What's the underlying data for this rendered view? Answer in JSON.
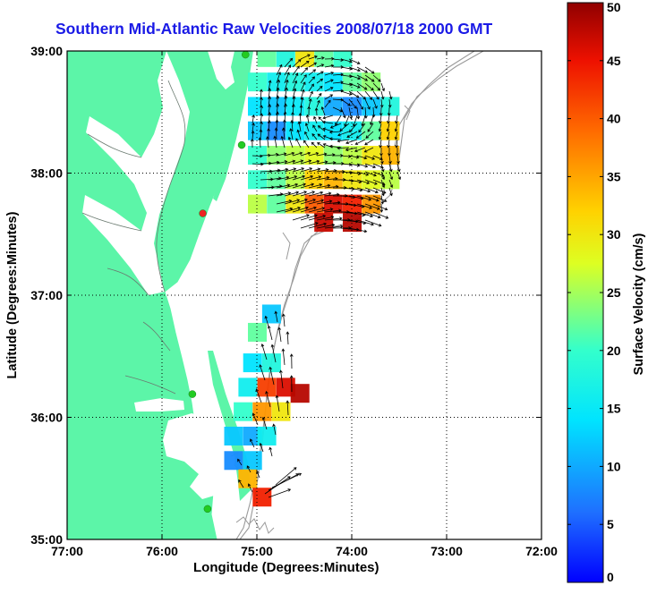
{
  "chart_data": {
    "type": "heatmap",
    "title": "Southern Mid-Atlantic Raw Velocities 2008/07/18 2000 GMT",
    "xlabel": "Longitude (Degrees:Minutes)",
    "ylabel": "Latitude (Degrees:Minutes)",
    "colorbar_label": "Surface Velocity (cm/s)",
    "x_ticks": [
      "77:00",
      "76:00",
      "75:00",
      "74:00",
      "73:00",
      "72:00"
    ],
    "y_ticks": [
      "39:00",
      "38:00",
      "37:00",
      "36:00",
      "35:00"
    ],
    "colorbar_ticks": [
      "0",
      "5",
      "10",
      "15",
      "20",
      "25",
      "30",
      "35",
      "40",
      "45",
      "50"
    ],
    "xlim": [
      -77,
      -72
    ],
    "ylim": [
      35,
      39
    ],
    "clim": [
      0,
      50
    ],
    "grid": true,
    "colormap": "jet",
    "land_color": "#5cf5a8",
    "stations": [
      {
        "lon": -75.12,
        "lat": 38.97,
        "color": "#22cc22"
      },
      {
        "lon": -75.16,
        "lat": 38.23,
        "color": "#22cc22"
      },
      {
        "lon": -75.57,
        "lat": 37.67,
        "color": "#ee2222"
      },
      {
        "lon": -75.68,
        "lat": 36.19,
        "color": "#22cc22"
      },
      {
        "lon": -75.52,
        "lat": 35.25,
        "color": "#22cc22"
      }
    ],
    "regions": [
      {
        "name": "north",
        "cells": [
          [
            -74.9,
            38.95,
            22
          ],
          [
            -74.7,
            38.95,
            18
          ],
          [
            -74.5,
            38.95,
            30
          ],
          [
            -74.3,
            38.95,
            22
          ],
          [
            -74.1,
            38.95,
            20
          ],
          [
            -75.0,
            38.75,
            20
          ],
          [
            -74.8,
            38.75,
            16
          ],
          [
            -74.6,
            38.75,
            18
          ],
          [
            -74.4,
            38.75,
            16
          ],
          [
            -74.2,
            38.75,
            14
          ],
          [
            -74.0,
            38.75,
            22
          ],
          [
            -73.8,
            38.75,
            24
          ],
          [
            -75.0,
            38.55,
            14
          ],
          [
            -74.8,
            38.55,
            12
          ],
          [
            -74.6,
            38.55,
            15
          ],
          [
            -74.4,
            38.55,
            18
          ],
          [
            -74.2,
            38.55,
            10
          ],
          [
            -74.0,
            38.55,
            8
          ],
          [
            -73.8,
            38.55,
            12
          ],
          [
            -73.6,
            38.55,
            18
          ],
          [
            -75.0,
            38.35,
            12
          ],
          [
            -74.8,
            38.35,
            8
          ],
          [
            -74.6,
            38.35,
            14
          ],
          [
            -74.4,
            38.35,
            16
          ],
          [
            -74.2,
            38.35,
            14
          ],
          [
            -74.0,
            38.35,
            16
          ],
          [
            -73.8,
            38.35,
            22
          ],
          [
            -73.6,
            38.35,
            32
          ],
          [
            -75.0,
            38.15,
            20
          ],
          [
            -74.8,
            38.15,
            24
          ],
          [
            -74.6,
            38.15,
            26
          ],
          [
            -74.4,
            38.15,
            28
          ],
          [
            -74.2,
            38.15,
            24
          ],
          [
            -74.0,
            38.15,
            26
          ],
          [
            -73.8,
            38.15,
            30
          ],
          [
            -73.6,
            38.15,
            34
          ],
          [
            -75.0,
            37.95,
            20
          ],
          [
            -74.8,
            37.95,
            22
          ],
          [
            -74.6,
            37.95,
            26
          ],
          [
            -74.4,
            37.95,
            32
          ],
          [
            -74.2,
            37.95,
            34
          ],
          [
            -74.0,
            37.95,
            30
          ],
          [
            -73.8,
            37.95,
            28
          ],
          [
            -73.6,
            37.95,
            26
          ],
          [
            -75.0,
            37.75,
            26
          ],
          [
            -74.8,
            37.75,
            22
          ],
          [
            -74.6,
            37.75,
            30
          ],
          [
            -74.4,
            37.75,
            40
          ],
          [
            -74.2,
            37.75,
            46
          ],
          [
            -74.0,
            37.75,
            44
          ],
          [
            -73.8,
            37.75,
            36
          ],
          [
            -74.3,
            37.6,
            47
          ],
          [
            -74.0,
            37.6,
            48
          ]
        ]
      },
      {
        "name": "south",
        "cells": [
          [
            -74.85,
            36.85,
            12
          ],
          [
            -75.0,
            36.7,
            22
          ],
          [
            -75.05,
            36.45,
            14
          ],
          [
            -74.85,
            36.45,
            18
          ],
          [
            -75.1,
            36.25,
            16
          ],
          [
            -74.9,
            36.25,
            42
          ],
          [
            -74.7,
            36.25,
            46
          ],
          [
            -74.55,
            36.2,
            48
          ],
          [
            -75.15,
            36.05,
            20
          ],
          [
            -74.95,
            36.05,
            36
          ],
          [
            -74.75,
            36.05,
            30
          ],
          [
            -75.25,
            35.85,
            12
          ],
          [
            -75.05,
            35.85,
            10
          ],
          [
            -74.9,
            35.85,
            16
          ],
          [
            -75.25,
            35.65,
            8
          ],
          [
            -75.05,
            35.65,
            12
          ],
          [
            -75.1,
            35.5,
            34
          ],
          [
            -74.95,
            35.35,
            44
          ]
        ]
      }
    ]
  }
}
